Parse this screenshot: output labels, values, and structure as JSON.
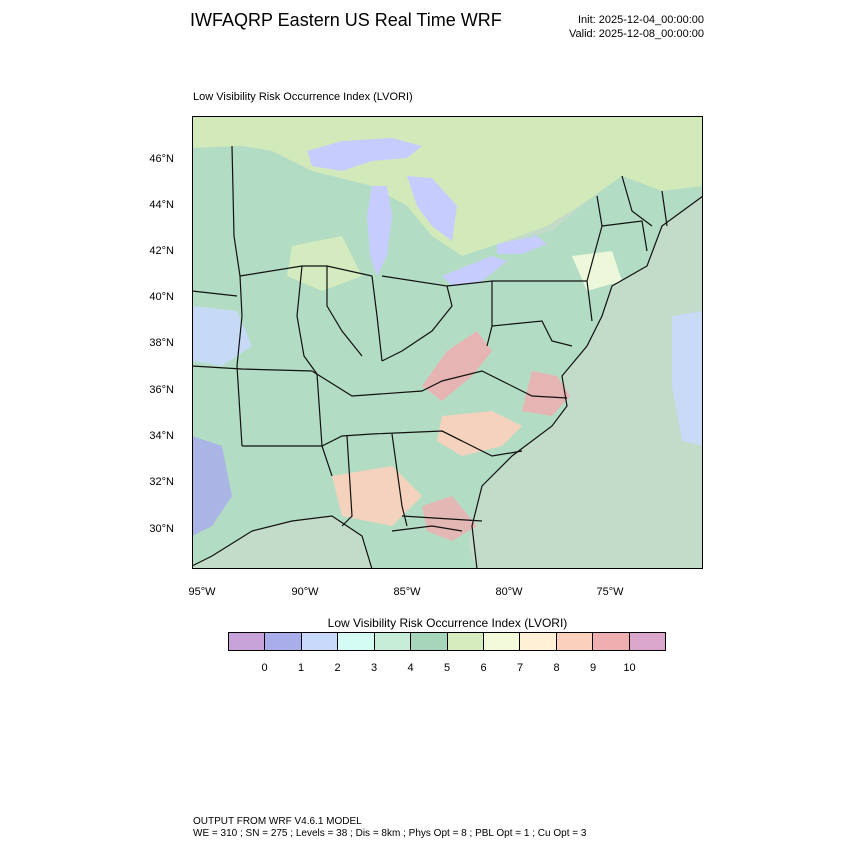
{
  "header": {
    "title": "IWFAQRP Eastern US Real Time WRF",
    "init": "Init: 2025-12-04_00:00:00",
    "valid": "Valid: 2025-12-08_00:00:00"
  },
  "plot": {
    "subtitle": "Low Visibility Risk Occurrence Index   (LVORI)",
    "lat_labels": [
      "46°N",
      "44°N",
      "42°N",
      "40°N",
      "38°N",
      "36°N",
      "34°N",
      "32°N",
      "30°N"
    ],
    "lon_labels": [
      "95°W",
      "90°W",
      "85°W",
      "80°W",
      "75°W"
    ],
    "colors": {
      "land_base": "#b3dcc4",
      "water": "#c3dbc9",
      "lakes": "#c7ccff",
      "canada": "#d2eab9",
      "borders": "#111111"
    }
  },
  "colorbar": {
    "title": "Low Visibility Risk Occurrence Index  (LVORI)",
    "colors": [
      "#c7a3d9",
      "#a9aeeb",
      "#c9d9fb",
      "#d4fbf4",
      "#c7ecd8",
      "#a7d5bc",
      "#d6ecbe",
      "#f3fadb",
      "#fff0d6",
      "#fbd0bd",
      "#efaeb0",
      "#dba6cc"
    ],
    "labels": [
      "0",
      "1",
      "2",
      "3",
      "4",
      "5",
      "6",
      "7",
      "8",
      "9",
      "10"
    ]
  },
  "footer": {
    "line1": "OUTPUT FROM WRF V4.6.1 MODEL",
    "line2": "WE = 310 ; SN = 275 ; Levels = 38 ; Dis = 8km ; Phys Opt = 8 ; PBL Opt = 1 ; Cu Opt = 3"
  }
}
